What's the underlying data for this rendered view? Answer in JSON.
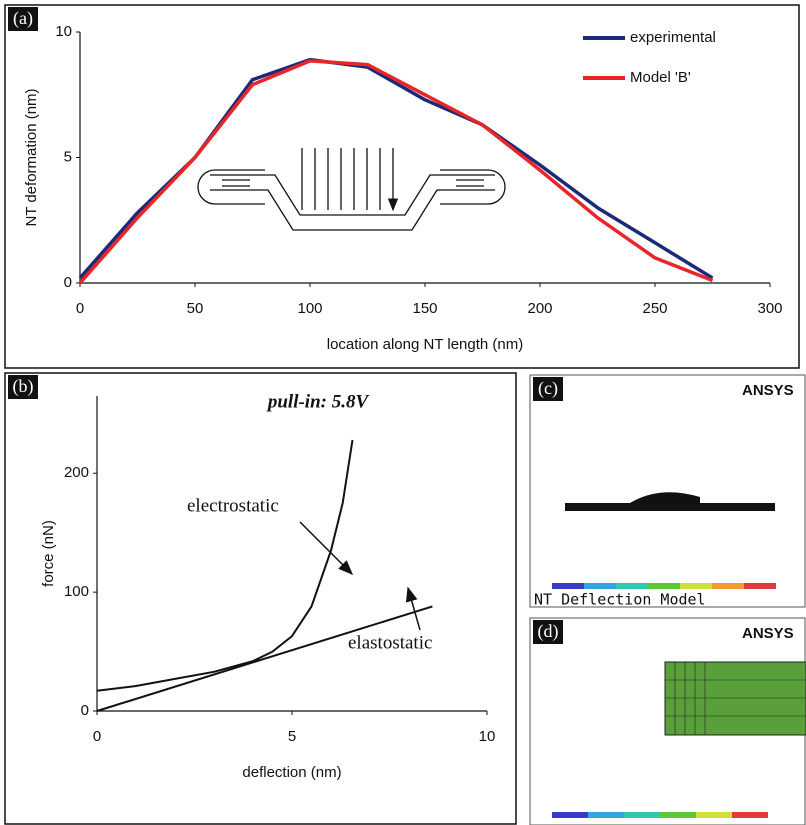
{
  "chart_data": [
    {
      "type": "line",
      "panel_label": "(a)",
      "x_label": "location along NT length (nm)",
      "y_label": "NT deformation (nm)",
      "x": [
        0,
        25,
        50,
        75,
        100,
        125,
        150,
        175,
        200,
        225,
        250,
        275
      ],
      "series": [
        {
          "name": "experimental",
          "color": "#1c2a78",
          "values": [
            0.2,
            2.8,
            5.0,
            8.1,
            8.9,
            8.6,
            7.3,
            6.3,
            4.7,
            3.0,
            1.6,
            0.2
          ]
        },
        {
          "name": "Model 'B'",
          "color": "#e8262a",
          "values": [
            0,
            2.6,
            5.0,
            7.9,
            8.85,
            8.7,
            7.5,
            6.3,
            4.5,
            2.6,
            1.0,
            0.1
          ]
        }
      ],
      "xlim": [
        0,
        300
      ],
      "xticks": [
        0,
        50,
        100,
        150,
        200,
        250,
        300
      ],
      "ylim": [
        0,
        10
      ],
      "yticks": [
        0,
        5,
        10
      ],
      "legend": "top-right"
    },
    {
      "type": "line",
      "panel_label": "(b)",
      "title": "pull-in: 5.8V",
      "x_label": "deflection (nm)",
      "y_label": "force (nN)",
      "series": [
        {
          "name": "electrostatic",
          "color": "#111111",
          "x": [
            0,
            1,
            2,
            3,
            4,
            4.5,
            5,
            5.5,
            6,
            6.3,
            6.55
          ],
          "values": [
            17,
            21,
            27,
            33,
            42,
            50,
            63,
            88,
            135,
            175,
            228
          ]
        },
        {
          "name": "elastostatic",
          "color": "#111111",
          "x": [
            0,
            4.3,
            8.6
          ],
          "values": [
            0,
            44,
            88
          ]
        }
      ],
      "xlim": [
        0,
        10
      ],
      "xticks": [
        0,
        5,
        10
      ],
      "ylim": [
        0,
        265
      ],
      "yticks": [
        0,
        100,
        200
      ]
    }
  ],
  "screens": [
    {
      "label": "(c)",
      "logo": "ANSYS",
      "caption": "NT Deflection Model"
    },
    {
      "label": "(d)",
      "logo": "ANSYS"
    }
  ]
}
